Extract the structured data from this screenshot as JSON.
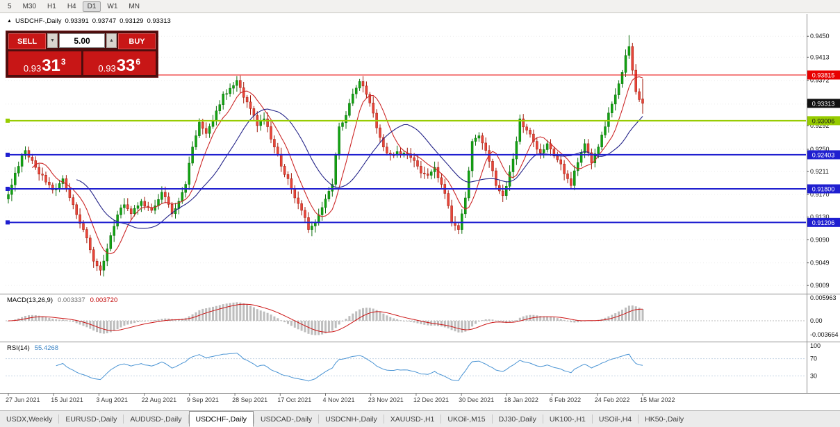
{
  "toolbar": {
    "timeframes": [
      "5",
      "M30",
      "H1",
      "H4",
      "D1",
      "W1",
      "MN"
    ],
    "active": "D1"
  },
  "icons": {
    "title_arrow": "▲",
    "volume_down": "▼",
    "volume_up": "▲"
  },
  "chart_header": {
    "title": "USDCHF-,Daily",
    "open": "0.93391",
    "high": "0.93747",
    "low": "0.93129",
    "close": "0.93313"
  },
  "one_click": {
    "sell_label": "SELL",
    "buy_label": "BUY",
    "volume": "5.00",
    "bid": {
      "prefix": "0.93",
      "big": "31",
      "sup": "3"
    },
    "ask": {
      "prefix": "0.93",
      "big": "33",
      "sup": "6"
    }
  },
  "levels": [
    {
      "price": 0.93815,
      "label": "0.93815",
      "line_color": "#e80000",
      "label_bg": "#e80000",
      "label_fg": "#ffffff",
      "width": 1
    },
    {
      "price": 0.93006,
      "label": "0.93006",
      "line_color": "#97cc00",
      "label_bg": "#97cc00",
      "label_fg": "#1a1a1a",
      "width": 2
    },
    {
      "price": 0.92403,
      "label": "0.92403",
      "line_color": "#1f1fd0",
      "label_bg": "#1f1fd0",
      "label_fg": "#ffffff",
      "width": 2
    },
    {
      "price": 0.918,
      "label": "0.91800",
      "line_color": "#1f1fd0",
      "label_bg": "#1f1fd0",
      "label_fg": "#ffffff",
      "width": 2
    },
    {
      "price": 0.91206,
      "label": "0.91206",
      "line_color": "#1f1fd0",
      "label_bg": "#1f1fd0",
      "label_fg": "#ffffff",
      "width": 2
    }
  ],
  "current_price": {
    "price": 0.93313,
    "label": "0.93313",
    "bg": "#111111",
    "fg": "#ffffff"
  },
  "macd_panel": {
    "name": "MACD(13,26,9)",
    "value_main": "0.003337",
    "value_signal": "0.003720",
    "axis": [
      "0.005963",
      "0.00",
      "-0.003664"
    ]
  },
  "rsi_panel": {
    "name": "RSI(14)",
    "value": "55.4268",
    "axis": [
      "100",
      "70",
      "30"
    ]
  },
  "tabs": {
    "items": [
      "USDX,Weekly",
      "EURUSD-,Daily",
      "AUDUSD-,Daily",
      "USDCHF-,Daily",
      "USDCAD-,Daily",
      "USDCNH-,Daily",
      "XAUUSD-,H1",
      "UKOil-,M15",
      "DJ30-,Daily",
      "UK100-,H1",
      "USOil-,H4",
      "HK50-,Daily"
    ],
    "active_index": 3
  },
  "colors": {
    "up": "#12a312",
    "up_dark": "#0a6e0a",
    "down": "#e8453a",
    "down_dark": "#a01808",
    "ma_fast": "#cc2828",
    "ma_slow": "#232388",
    "macd_hist": "#bdbdbd",
    "macd_signal": "#cc1414",
    "rsi": "#4a94d4",
    "grid": "#ececec",
    "separator": "#8c8c8c",
    "accent_red": "#c81616",
    "panel_bg": "#4d0d0d"
  },
  "chart_data": {
    "type": "candlestick",
    "symbol": "USDCHF-",
    "timeframe": "Daily",
    "bar_count": 187,
    "last_bar_ohlc": [
      0.93391,
      0.93747,
      0.93129,
      0.93313
    ],
    "spike": {
      "index": 182,
      "high": 0.9452
    },
    "close_anchors": [
      [
        0,
        0.917
      ],
      [
        2,
        0.9208
      ],
      [
        5,
        0.9248
      ],
      [
        8,
        0.9218
      ],
      [
        11,
        0.9192
      ],
      [
        13,
        0.9178
      ],
      [
        16,
        0.9198
      ],
      [
        19,
        0.9152
      ],
      [
        22,
        0.9108
      ],
      [
        25,
        0.9052
      ],
      [
        27,
        0.9036
      ],
      [
        29,
        0.9074
      ],
      [
        32,
        0.9134
      ],
      [
        34,
        0.9152
      ],
      [
        36,
        0.9136
      ],
      [
        39,
        0.9158
      ],
      [
        42,
        0.9142
      ],
      [
        45,
        0.9174
      ],
      [
        48,
        0.9136
      ],
      [
        50,
        0.9158
      ],
      [
        52,
        0.9188
      ],
      [
        54,
        0.9254
      ],
      [
        56,
        0.9298
      ],
      [
        58,
        0.9278
      ],
      [
        61,
        0.9318
      ],
      [
        63,
        0.9348
      ],
      [
        65,
        0.9358
      ],
      [
        67,
        0.9372
      ],
      [
        69,
        0.9342
      ],
      [
        71,
        0.9322
      ],
      [
        73,
        0.9292
      ],
      [
        75,
        0.9304
      ],
      [
        78,
        0.9254
      ],
      [
        80,
        0.922
      ],
      [
        82,
        0.9198
      ],
      [
        84,
        0.9164
      ],
      [
        86,
        0.9142
      ],
      [
        88,
        0.9108
      ],
      [
        90,
        0.912
      ],
      [
        91,
        0.9134
      ],
      [
        93,
        0.9162
      ],
      [
        95,
        0.9188
      ],
      [
        97,
        0.929
      ],
      [
        99,
        0.931
      ],
      [
        101,
        0.9348
      ],
      [
        103,
        0.937
      ],
      [
        104,
        0.9362
      ],
      [
        106,
        0.9332
      ],
      [
        108,
        0.9288
      ],
      [
        110,
        0.9254
      ],
      [
        112,
        0.924
      ],
      [
        114,
        0.9246
      ],
      [
        117,
        0.9242
      ],
      [
        119,
        0.923
      ],
      [
        121,
        0.9208
      ],
      [
        123,
        0.9204
      ],
      [
        125,
        0.9218
      ],
      [
        127,
        0.9188
      ],
      [
        129,
        0.915
      ],
      [
        130,
        0.912
      ],
      [
        132,
        0.9108
      ],
      [
        134,
        0.9164
      ],
      [
        136,
        0.9264
      ],
      [
        138,
        0.9274
      ],
      [
        140,
        0.9248
      ],
      [
        142,
        0.9212
      ],
      [
        143,
        0.9186
      ],
      [
        145,
        0.9168
      ],
      [
        147,
        0.921
      ],
      [
        149,
        0.9264
      ],
      [
        150,
        0.9304
      ],
      [
        152,
        0.9284
      ],
      [
        154,
        0.9264
      ],
      [
        156,
        0.9244
      ],
      [
        158,
        0.926
      ],
      [
        160,
        0.9238
      ],
      [
        162,
        0.9224
      ],
      [
        164,
        0.9198
      ],
      [
        165,
        0.9186
      ],
      [
        166,
        0.9212
      ],
      [
        168,
        0.9244
      ],
      [
        169,
        0.926
      ],
      [
        171,
        0.9226
      ],
      [
        173,
        0.9254
      ],
      [
        175,
        0.929
      ],
      [
        177,
        0.933
      ],
      [
        179,
        0.9366
      ],
      [
        180,
        0.9386
      ],
      [
        181,
        0.9416
      ],
      [
        182,
        0.9432
      ],
      [
        183,
        0.939
      ],
      [
        184,
        0.9352
      ],
      [
        185,
        0.9338
      ],
      [
        186,
        0.93313
      ]
    ],
    "y_axis_ticks": [
      "0.9450",
      "0.9413",
      "0.9372",
      "0.9330",
      "0.9292",
      "0.9250",
      "0.9211",
      "0.9170",
      "0.9130",
      "0.9090",
      "0.9049",
      "0.9009"
    ],
    "x_labels": [
      "27 Jun 2021",
      "15 Jul 2021",
      "3 Aug 2021",
      "22 Aug 2021",
      "9 Sep 2021",
      "28 Sep 2021",
      "17 Oct 2021",
      "4 Nov 2021",
      "23 Nov 2021",
      "12 Dec 2021",
      "30 Dec 2021",
      "18 Jan 2022",
      "6 Feb 2022",
      "24 Feb 2022",
      "15 Mar 2022"
    ],
    "overlays": {
      "ma_fast_period": 8,
      "ma_slow_period": 21
    },
    "macd": {
      "params": [
        13,
        26,
        9
      ],
      "axis": [
        0.005963,
        0,
        -0.003664
      ]
    },
    "rsi": {
      "period": 14,
      "levels": [
        70,
        30
      ],
      "axis": [
        100,
        70,
        30
      ]
    }
  }
}
